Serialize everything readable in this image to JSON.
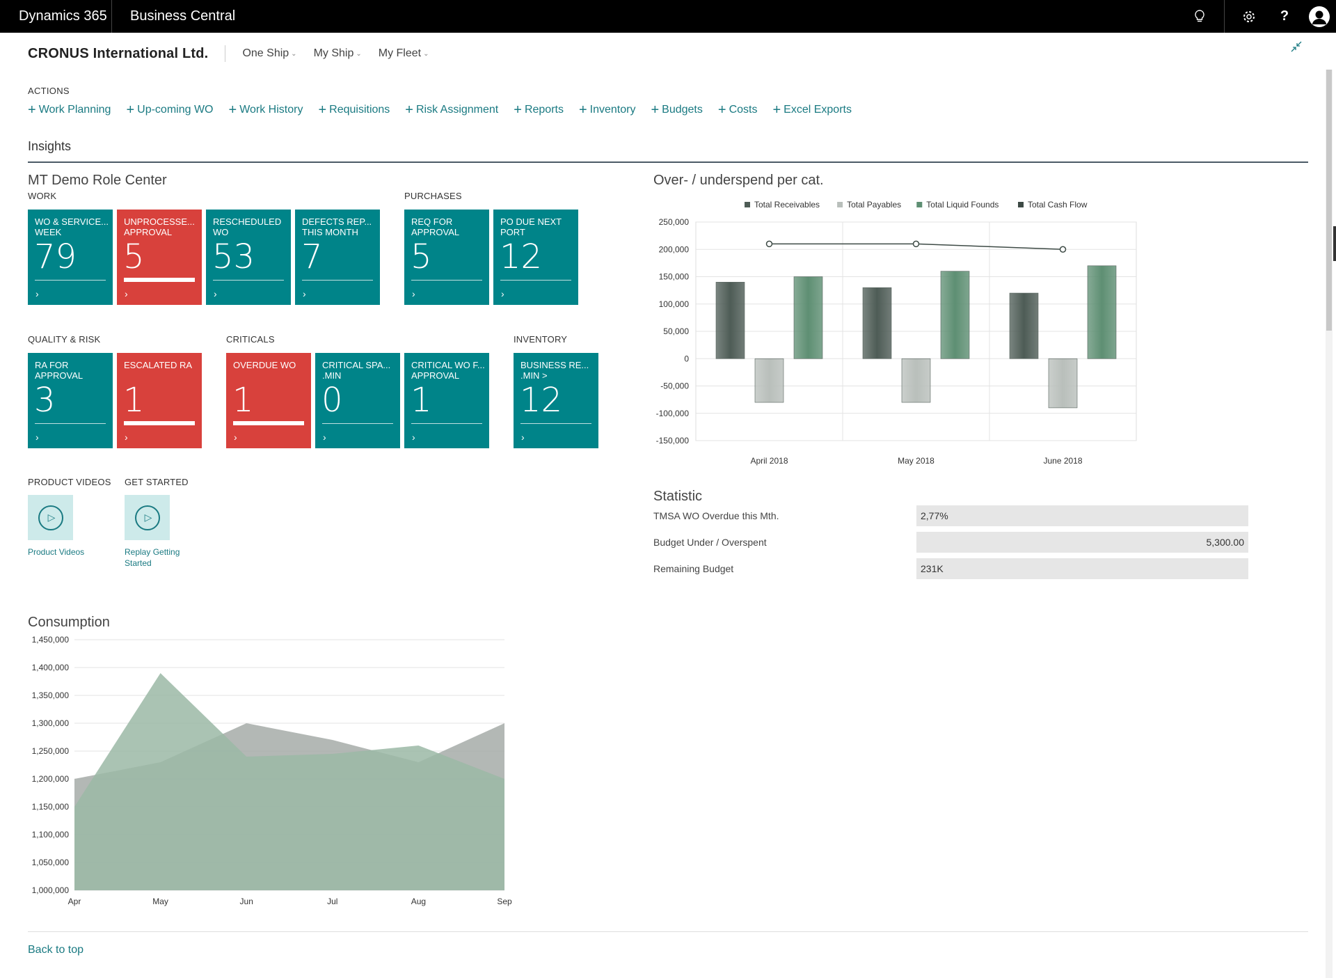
{
  "topbar": {
    "brand": "Dynamics 365",
    "app": "Business Central"
  },
  "header": {
    "company": "CRONUS International Ltd.",
    "nav": [
      "One Ship",
      "My Ship",
      "My Fleet"
    ]
  },
  "actions": {
    "label": "ACTIONS",
    "items": [
      "Work Planning",
      "Up-coming WO",
      "Work History",
      "Requisitions",
      "Risk Assignment",
      "Reports",
      "Inventory",
      "Budgets",
      "Costs",
      "Excel Exports"
    ]
  },
  "insights": {
    "title": "Insights"
  },
  "role_center": {
    "title": "MT Demo Role Center",
    "work": {
      "label": "WORK",
      "tiles": [
        {
          "title": "WO & SERVICE...\nWEEK",
          "value": "79",
          "color": "#008489"
        },
        {
          "title": "UNPROCESSE...\nAPPROVAL",
          "value": "5",
          "color": "#d8413c"
        },
        {
          "title": "RESCHEDULED\nWO",
          "value": "53",
          "color": "#008489"
        },
        {
          "title": "DEFECTS REP...\nTHIS MONTH",
          "value": "7",
          "color": "#008489"
        }
      ]
    },
    "purchases": {
      "label": "PURCHASES",
      "tiles": [
        {
          "title": "REQ FOR\nAPPROVAL",
          "value": "5",
          "color": "#008489"
        },
        {
          "title": "PO DUE NEXT\nPORT",
          "value": "12",
          "color": "#008489"
        }
      ]
    },
    "quality": {
      "label": "QUALITY & RISK",
      "tiles": [
        {
          "title": "RA FOR\nAPPROVAL",
          "value": "3",
          "color": "#008489"
        },
        {
          "title": "ESCALATED RA",
          "value": "1",
          "color": "#d8413c"
        }
      ]
    },
    "criticals": {
      "label": "CRITICALS",
      "tiles": [
        {
          "title": "OVERDUE WO",
          "value": "1",
          "color": "#d8413c"
        },
        {
          "title": "CRITICAL SPA...\n.MIN",
          "value": "0",
          "color": "#008489"
        },
        {
          "title": "CRITICAL WO F...\nAPPROVAL",
          "value": "1",
          "color": "#008489"
        }
      ]
    },
    "inventory": {
      "label": "INVENTORY",
      "tiles": [
        {
          "title": "BUSINESS RE...\n.MIN >",
          "value": "12",
          "color": "#008489"
        }
      ]
    },
    "product_videos": {
      "label": "PRODUCT VIDEOS",
      "link": "Product Videos",
      "icon": "play-icon"
    },
    "get_started": {
      "label": "GET STARTED",
      "link": "Replay Getting\nStarted",
      "icon": "play-icon"
    }
  },
  "statistic": {
    "title": "Statistic",
    "rows": [
      {
        "label": "TMSA WO Overdue this Mth.",
        "value": "2,77%",
        "align": "left"
      },
      {
        "label": "Budget Under / Overspent",
        "value": "5,300.00",
        "align": "right"
      },
      {
        "label": "Remaining Budget",
        "value": "231K",
        "align": "left"
      }
    ]
  },
  "footer": {
    "back_to_top": "Back to top"
  },
  "chart_data": [
    {
      "type": "bar",
      "title": "Over- / underspend per cat.",
      "categories": [
        "April 2018",
        "May 2018",
        "June 2018"
      ],
      "series": [
        {
          "name": "Total Receivables",
          "kind": "bar",
          "color": "#4e5c56",
          "values": [
            140000,
            130000,
            120000
          ]
        },
        {
          "name": "Total Payables",
          "kind": "bar",
          "color": "#b9bfbb",
          "values": [
            -80000,
            -80000,
            -90000
          ]
        },
        {
          "name": "Total Liquid Founds",
          "kind": "bar",
          "color": "#5e8f73",
          "values": [
            150000,
            160000,
            170000
          ]
        },
        {
          "name": "Total Cash Flow",
          "kind": "line",
          "color": "#3d4a45",
          "values": [
            210000,
            210000,
            200000
          ]
        }
      ],
      "ylim": [
        -150000,
        250000
      ],
      "yticks": [
        "250,000",
        "200,000",
        "150,000",
        "100,000",
        "50,000",
        "0",
        "-50,000",
        "-100,000",
        "-150,000"
      ],
      "grid": true,
      "legend": "top"
    },
    {
      "type": "area",
      "title": "Consumption",
      "categories": [
        "Apr",
        "May",
        "Jun",
        "Jul",
        "Aug",
        "Sep"
      ],
      "series": [
        {
          "color": "#a6aca8",
          "values": [
            1200000,
            1230000,
            1300000,
            1270000,
            1230000,
            1300000
          ]
        },
        {
          "color": "#9bb9a6",
          "values": [
            1150000,
            1390000,
            1240000,
            1245000,
            1260000,
            1200000
          ]
        }
      ],
      "ylim": [
        1000000,
        1450000
      ],
      "yticks": [
        "1,450,000",
        "1,400,000",
        "1,350,000",
        "1,300,000",
        "1,250,000",
        "1,200,000",
        "1,150,000",
        "1,100,000",
        "1,050,000",
        "1,000,000"
      ],
      "grid": true
    }
  ]
}
